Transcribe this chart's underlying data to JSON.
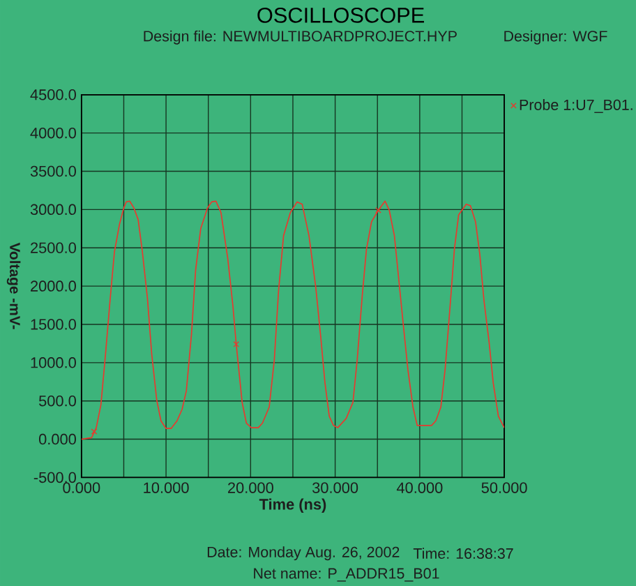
{
  "chart_data": {
    "type": "line",
    "title": "OSCILLOSCOPE",
    "subtitle": "Design file: NEWMULTIBOARDPROJECT.HYP",
    "xlabel": "Time (ns)",
    "ylabel": "Voltage -mV-",
    "annotations": [
      "Designer: WGF",
      "Date: Monday Aug. 26, 2002",
      "Time: 16:38:37",
      "Net name: P_ADDR15_B01"
    ],
    "x": [
      0,
      1.2,
      1.75,
      2.3,
      2.85,
      3.4,
      3.9,
      4.5,
      5.0,
      5.3,
      5.7,
      6.2,
      6.7,
      7.2,
      7.8,
      8.3,
      8.9,
      9.4,
      10.0,
      10.6,
      11.3,
      11.9,
      12.4,
      13.0,
      13.5,
      14.1,
      14.9,
      15.4,
      15.9,
      16.5,
      17.3,
      17.9,
      18.3,
      19.0,
      19.5,
      20.1,
      20.9,
      21.4,
      22.2,
      22.8,
      23.3,
      23.9,
      24.7,
      25.5,
      26.1,
      26.9,
      27.7,
      28.3,
      28.8,
      29.3,
      29.8,
      30.3,
      31.3,
      32.1,
      32.6,
      33.2,
      33.7,
      34.3,
      35.1,
      35.9,
      36.4,
      37.0,
      37.5,
      38.1,
      38.6,
      39.2,
      39.7,
      40.3,
      41.4,
      41.9,
      42.5,
      43.0,
      43.6,
      44.1,
      44.6,
      45.5,
      46.0,
      46.6,
      47.1,
      47.6,
      48.2,
      48.7,
      49.3,
      50.0
    ],
    "series": [
      {
        "name": "Probe 1:U7_B01.",
        "color": "#e8392e",
        "marker": "none",
        "values": [
          0,
          20,
          150,
          450,
          1120,
          1840,
          2450,
          2810,
          3020,
          3100,
          3110,
          3020,
          2870,
          2450,
          1840,
          1120,
          510,
          240,
          140,
          140,
          240,
          390,
          630,
          1360,
          2210,
          2750,
          3020,
          3100,
          3110,
          2960,
          2360,
          1750,
          1240,
          480,
          210,
          150,
          150,
          210,
          420,
          1030,
          1930,
          2660,
          2960,
          3100,
          3070,
          2660,
          1990,
          1330,
          730,
          300,
          180,
          150,
          270,
          480,
          1030,
          1870,
          2480,
          2840,
          2990,
          3110,
          2990,
          2660,
          2110,
          1450,
          910,
          420,
          180,
          180,
          180,
          240,
          420,
          910,
          1750,
          2480,
          2930,
          3070,
          3050,
          2840,
          2420,
          1810,
          1270,
          730,
          300,
          150
        ]
      },
      {
        "type": "scatter",
        "color": "#e8392e",
        "x": [
          1.5,
          18.3,
          35.1
        ],
        "values": [
          100,
          1240,
          2990
        ]
      }
    ],
    "xlim": [
      0,
      50
    ],
    "ylim": [
      -500,
      4500
    ],
    "xticks": [
      {
        "value": 0,
        "label": "0.000"
      },
      {
        "value": 5,
        "label": null
      },
      {
        "value": 10,
        "label": "10.000"
      },
      {
        "value": 15,
        "label": null
      },
      {
        "value": 20,
        "label": "20.000"
      },
      {
        "value": 25,
        "label": null
      },
      {
        "value": 30,
        "label": "30.000"
      },
      {
        "value": 35,
        "label": null
      },
      {
        "value": 40,
        "label": "40.000"
      },
      {
        "value": 45,
        "label": null
      },
      {
        "value": 50,
        "label": "50.000"
      }
    ],
    "yticks": [
      {
        "value": -500,
        "label": "-500.0"
      },
      {
        "value": 0,
        "label": "0.000"
      },
      {
        "value": 500,
        "label": "500.0"
      },
      {
        "value": 1000,
        "label": "1000.0"
      },
      {
        "value": 1500,
        "label": "1500.0"
      },
      {
        "value": 2000,
        "label": "2000.0"
      },
      {
        "value": 2500,
        "label": "2500.0"
      },
      {
        "value": 3000,
        "label": "3000.0"
      },
      {
        "value": 3500,
        "label": "3500.0"
      },
      {
        "value": 4000,
        "label": "4000.0"
      },
      {
        "value": 4500,
        "label": "4500.0"
      }
    ],
    "grid": true,
    "legend": "top right",
    "marker": "cross",
    "line_style": "solid"
  }
}
